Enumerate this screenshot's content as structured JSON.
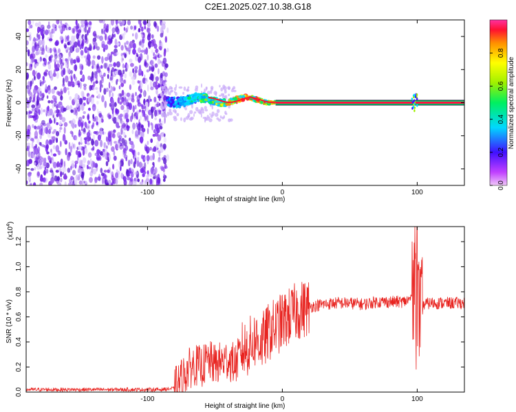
{
  "title": "C2E1.2025.027.10.38.G18",
  "colors": {
    "snr_line": "#e8231f",
    "noise": "#6a1ee0",
    "frame": "#000000"
  },
  "chart_data": [
    {
      "type": "heatmap",
      "xlabel": "Height of straight line (km)",
      "ylabel": "Frequency (Hz)",
      "xlim": [
        -190,
        135
      ],
      "ylim": [
        -50,
        50
      ],
      "xticks": [
        -100,
        0,
        100
      ],
      "yticks": [
        -40,
        -20,
        0,
        20,
        40
      ],
      "colorbar": {
        "label": "Normalized spectral amplitude",
        "range": [
          0,
          1
        ],
        "ticks": [
          "0.0",
          "0.2",
          "0.4",
          "0.6",
          "0.8"
        ]
      },
      "regions": {
        "broadband_noise_x": [
          -190,
          -85
        ],
        "dispersed_signal_x": [
          -85,
          -5
        ],
        "tone_x": [
          -5,
          135
        ],
        "tone_frequency": 0
      }
    },
    {
      "type": "line",
      "xlabel": "Height of straight line (km)",
      "ylabel": "SNR (10 * v/v)",
      "y_multiplier": "(x10",
      "y_multiplier_exp": "4",
      "xlim": [
        -190,
        135
      ],
      "ylim": [
        0,
        1.32
      ],
      "xticks": [
        -100,
        0,
        100
      ],
      "yticks": [
        "0.0",
        "0.2",
        "0.4",
        "0.6",
        "0.8",
        "1.0",
        "1.2"
      ],
      "series": [
        {
          "x": [
            -190,
            -160,
            -120,
            -90,
            -80,
            -75,
            -70,
            -65,
            -60,
            -55,
            -50,
            -45,
            -40,
            -35,
            -30,
            -25,
            -20,
            -15,
            -10,
            -5,
            0,
            5,
            10,
            15,
            20,
            30,
            40,
            50,
            60,
            70,
            80,
            90,
            95,
            98,
            100,
            102,
            105,
            110,
            120,
            135
          ],
          "y": [
            0.02,
            0.02,
            0.02,
            0.02,
            0.03,
            0.1,
            0.18,
            0.22,
            0.2,
            0.25,
            0.22,
            0.24,
            0.26,
            0.22,
            0.33,
            0.36,
            0.42,
            0.4,
            0.48,
            0.52,
            0.56,
            0.6,
            0.64,
            0.66,
            0.68,
            0.7,
            0.71,
            0.71,
            0.7,
            0.72,
            0.72,
            0.72,
            0.74,
            0.9,
            0.72,
            0.6,
            0.7,
            0.71,
            0.71,
            0.71
          ]
        }
      ]
    }
  ]
}
